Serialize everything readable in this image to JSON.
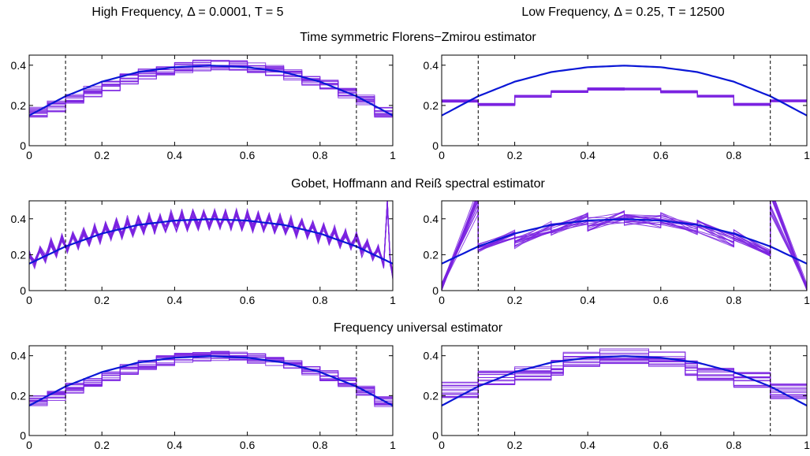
{
  "column_titles": [
    "High Frequency, Δ = 0.0001, T = 5",
    "Low Frequency, Δ = 0.25, T = 12500"
  ],
  "row_titles": [
    "Time symmetric Florens−Zmirou estimator",
    "Gobet, Hoffmann and Reiß spectral estimator",
    "Frequency universal estimator"
  ],
  "colors": {
    "true_curve": "#0a17d6",
    "estimates": "#7a22e0",
    "dashed_lines": "#000000"
  },
  "chart_data": [
    {
      "type": "line",
      "id": "fz-high",
      "row": 0,
      "col": 0,
      "xlim": [
        0,
        1
      ],
      "ylim": [
        0,
        0.45
      ],
      "xticks": [
        0,
        0.2,
        0.4,
        0.6,
        0.8,
        1
      ],
      "xtick_labels": [
        "0",
        "0.2",
        "0.4",
        "0.6",
        "0.8",
        "1"
      ],
      "yticks": [
        0,
        0.2,
        0.4
      ],
      "ytick_labels": [
        "0",
        "0.2",
        "0.4"
      ],
      "vlines": [
        0.1,
        0.9
      ],
      "true_curve": {
        "x": [
          0,
          0.1,
          0.2,
          0.3,
          0.4,
          0.5,
          0.6,
          0.7,
          0.8,
          0.9,
          1
        ],
        "y": [
          0.15,
          0.246,
          0.318,
          0.366,
          0.39,
          0.398,
          0.39,
          0.366,
          0.318,
          0.246,
          0.15
        ]
      },
      "estimates": {
        "style": "step",
        "bin_edges": [
          0,
          0.05,
          0.1,
          0.15,
          0.2,
          0.25,
          0.3,
          0.35,
          0.4,
          0.45,
          0.5,
          0.55,
          0.6,
          0.65,
          0.7,
          0.75,
          0.8,
          0.85,
          0.9,
          0.95,
          1
        ],
        "center": [
          0.165,
          0.195,
          0.235,
          0.27,
          0.3,
          0.33,
          0.355,
          0.375,
          0.39,
          0.398,
          0.398,
          0.395,
          0.388,
          0.372,
          0.352,
          0.328,
          0.3,
          0.265,
          0.225,
          0.165
        ],
        "spread": 0.028,
        "count": 14
      }
    },
    {
      "type": "line",
      "id": "fz-low",
      "row": 0,
      "col": 1,
      "xlim": [
        0,
        1
      ],
      "ylim": [
        0,
        0.45
      ],
      "xticks": [
        0,
        0.2,
        0.4,
        0.6,
        0.8,
        1
      ],
      "xtick_labels": [
        "0",
        "0.2",
        "0.4",
        "0.6",
        "0.8",
        "1"
      ],
      "yticks": [
        0,
        0.2,
        0.4
      ],
      "ytick_labels": [
        "0",
        "0.2",
        "0.4"
      ],
      "vlines": [
        0.1,
        0.9
      ],
      "true_curve": {
        "x": [
          0,
          0.1,
          0.2,
          0.3,
          0.4,
          0.5,
          0.6,
          0.7,
          0.8,
          0.9,
          1
        ],
        "y": [
          0.15,
          0.246,
          0.318,
          0.366,
          0.39,
          0.398,
          0.39,
          0.366,
          0.318,
          0.246,
          0.15
        ]
      },
      "estimates": {
        "style": "step",
        "bin_edges": [
          0,
          0.1,
          0.2,
          0.3,
          0.4,
          0.5,
          0.6,
          0.7,
          0.8,
          0.9,
          1
        ],
        "center": [
          0.222,
          0.205,
          0.245,
          0.268,
          0.282,
          0.282,
          0.268,
          0.245,
          0.205,
          0.222
        ],
        "spread": 0.006,
        "count": 14
      }
    },
    {
      "type": "line",
      "id": "ghr-high",
      "row": 1,
      "col": 0,
      "xlim": [
        0,
        1
      ],
      "ylim": [
        0,
        0.5
      ],
      "xticks": [
        0,
        0.2,
        0.4,
        0.6,
        0.8,
        1
      ],
      "xtick_labels": [
        "0",
        "0.2",
        "0.4",
        "0.6",
        "0.8",
        "1"
      ],
      "yticks": [
        0,
        0.2,
        0.4
      ],
      "ytick_labels": [
        "0",
        "0.2",
        "0.4"
      ],
      "vlines": [
        0.1,
        0.9
      ],
      "true_curve": {
        "x": [
          0,
          0.1,
          0.2,
          0.3,
          0.4,
          0.5,
          0.6,
          0.7,
          0.8,
          0.9,
          1
        ],
        "y": [
          0.15,
          0.246,
          0.318,
          0.366,
          0.39,
          0.398,
          0.39,
          0.366,
          0.318,
          0.246,
          0.15
        ]
      },
      "estimates": {
        "style": "oscillating",
        "x": [
          0,
          0.015,
          0.03,
          0.045,
          0.06,
          0.075,
          0.09,
          0.105,
          0.12,
          0.135,
          0.15,
          0.165,
          0.18,
          0.195,
          0.21,
          0.225,
          0.24,
          0.255,
          0.27,
          0.285,
          0.3,
          0.315,
          0.33,
          0.345,
          0.36,
          0.375,
          0.39,
          0.405,
          0.42,
          0.435,
          0.45,
          0.465,
          0.48,
          0.495,
          0.51,
          0.525,
          0.54,
          0.555,
          0.57,
          0.585,
          0.6,
          0.615,
          0.63,
          0.645,
          0.66,
          0.675,
          0.69,
          0.705,
          0.72,
          0.735,
          0.75,
          0.765,
          0.78,
          0.795,
          0.81,
          0.825,
          0.84,
          0.855,
          0.87,
          0.885,
          0.9,
          0.915,
          0.93,
          0.945,
          0.96,
          0.975,
          0.985,
          0.993,
          1
        ],
        "center": [
          0.17,
          0.19,
          0.2,
          0.215,
          0.23,
          0.245,
          0.255,
          0.265,
          0.275,
          0.285,
          0.295,
          0.3,
          0.31,
          0.318,
          0.325,
          0.333,
          0.34,
          0.345,
          0.352,
          0.357,
          0.362,
          0.368,
          0.372,
          0.376,
          0.38,
          0.383,
          0.386,
          0.389,
          0.391,
          0.393,
          0.395,
          0.396,
          0.397,
          0.398,
          0.398,
          0.397,
          0.396,
          0.395,
          0.393,
          0.391,
          0.389,
          0.386,
          0.383,
          0.38,
          0.376,
          0.372,
          0.368,
          0.362,
          0.357,
          0.352,
          0.345,
          0.34,
          0.333,
          0.325,
          0.318,
          0.31,
          0.3,
          0.295,
          0.285,
          0.275,
          0.265,
          0.25,
          0.235,
          0.22,
          0.2,
          0.18,
          0.45,
          0.2,
          0.05
        ],
        "spread": 0.045,
        "count": 16
      }
    },
    {
      "type": "line",
      "id": "ghr-low",
      "row": 1,
      "col": 1,
      "xlim": [
        0,
        1
      ],
      "ylim": [
        0,
        0.5
      ],
      "xticks": [
        0,
        0.2,
        0.4,
        0.6,
        0.8,
        1
      ],
      "xtick_labels": [
        "0",
        "0.2",
        "0.4",
        "0.6",
        "0.8",
        "1"
      ],
      "yticks": [
        0,
        0.2,
        0.4
      ],
      "ytick_labels": [
        "0",
        "0.2",
        "0.4"
      ],
      "vlines": [
        0.1,
        0.9
      ],
      "true_curve": {
        "x": [
          0,
          0.1,
          0.2,
          0.3,
          0.4,
          0.5,
          0.6,
          0.7,
          0.8,
          0.9,
          1
        ],
        "y": [
          0.15,
          0.246,
          0.318,
          0.366,
          0.39,
          0.398,
          0.39,
          0.366,
          0.318,
          0.246,
          0.15
        ]
      },
      "estimates": {
        "style": "piecewise",
        "segments": [
          {
            "x0": 0,
            "x1": 0.1,
            "y0": 0.02,
            "y1": 0.5,
            "s0": 0.02,
            "s1": 0.08
          },
          {
            "x0": 0.1,
            "x1": 0.2,
            "y0": 0.24,
            "y1": 0.31,
            "s0": 0.03,
            "s1": 0.03
          },
          {
            "x0": 0.2,
            "x1": 0.3,
            "y0": 0.27,
            "y1": 0.36,
            "s0": 0.04,
            "s1": 0.04
          },
          {
            "x0": 0.3,
            "x1": 0.4,
            "y0": 0.34,
            "y1": 0.4,
            "s0": 0.035,
            "s1": 0.035
          },
          {
            "x0": 0.4,
            "x1": 0.5,
            "y0": 0.37,
            "y1": 0.41,
            "s0": 0.04,
            "s1": 0.035
          },
          {
            "x0": 0.5,
            "x1": 0.6,
            "y0": 0.39,
            "y1": 0.38,
            "s0": 0.035,
            "s1": 0.04
          },
          {
            "x0": 0.6,
            "x1": 0.7,
            "y0": 0.4,
            "y1": 0.34,
            "s0": 0.035,
            "s1": 0.035
          },
          {
            "x0": 0.7,
            "x1": 0.8,
            "y0": 0.36,
            "y1": 0.27,
            "s0": 0.04,
            "s1": 0.04
          },
          {
            "x0": 0.8,
            "x1": 0.9,
            "y0": 0.31,
            "y1": 0.22,
            "s0": 0.03,
            "s1": 0.03
          },
          {
            "x0": 0.9,
            "x1": 1,
            "y0": 0.5,
            "y1": 0.02,
            "s0": 0.08,
            "s1": 0.02
          }
        ],
        "count": 16
      }
    },
    {
      "type": "line",
      "id": "fu-high",
      "row": 2,
      "col": 0,
      "xlim": [
        0,
        1
      ],
      "ylim": [
        0,
        0.45
      ],
      "xticks": [
        0,
        0.2,
        0.4,
        0.6,
        0.8,
        1
      ],
      "xtick_labels": [
        "0",
        "0.2",
        "0.4",
        "0.6",
        "0.8",
        "1"
      ],
      "yticks": [
        0,
        0.2,
        0.4
      ],
      "ytick_labels": [
        "0",
        "0.2",
        "0.4"
      ],
      "vlines": [
        0.1,
        0.9
      ],
      "true_curve": {
        "x": [
          0,
          0.1,
          0.2,
          0.3,
          0.4,
          0.5,
          0.6,
          0.7,
          0.8,
          0.9,
          1
        ],
        "y": [
          0.15,
          0.246,
          0.318,
          0.366,
          0.39,
          0.398,
          0.39,
          0.366,
          0.318,
          0.246,
          0.15
        ]
      },
      "estimates": {
        "style": "step",
        "bin_edges": [
          0,
          0.05,
          0.1,
          0.15,
          0.2,
          0.25,
          0.3,
          0.35,
          0.4,
          0.45,
          0.5,
          0.55,
          0.6,
          0.65,
          0.7,
          0.75,
          0.8,
          0.85,
          0.9,
          0.95,
          1
        ],
        "center": [
          0.175,
          0.2,
          0.238,
          0.27,
          0.3,
          0.33,
          0.355,
          0.376,
          0.39,
          0.398,
          0.398,
          0.396,
          0.388,
          0.372,
          0.352,
          0.328,
          0.3,
          0.265,
          0.225,
          0.17
        ],
        "spread": 0.026,
        "count": 14
      }
    },
    {
      "type": "line",
      "id": "fu-low",
      "row": 2,
      "col": 1,
      "xlim": [
        0,
        1
      ],
      "ylim": [
        0,
        0.45
      ],
      "xticks": [
        0,
        0.2,
        0.4,
        0.6,
        0.8,
        1
      ],
      "xtick_labels": [
        "0",
        "0.2",
        "0.4",
        "0.6",
        "0.8",
        "1"
      ],
      "yticks": [
        0,
        0.2,
        0.4
      ],
      "ytick_labels": [
        "0",
        "0.2",
        "0.4"
      ],
      "vlines": [
        0.1,
        0.9
      ],
      "true_curve": {
        "x": [
          0,
          0.1,
          0.2,
          0.3,
          0.4,
          0.5,
          0.6,
          0.7,
          0.8,
          0.9,
          1
        ],
        "y": [
          0.15,
          0.246,
          0.318,
          0.366,
          0.39,
          0.398,
          0.39,
          0.366,
          0.318,
          0.246,
          0.15
        ]
      },
      "estimates": {
        "style": "step",
        "bin_edges": [
          0,
          0.1,
          0.2,
          0.3,
          0.333,
          0.433,
          0.567,
          0.667,
          0.7,
          0.8,
          0.9,
          1
        ],
        "center": [
          0.23,
          0.285,
          0.31,
          0.34,
          0.385,
          0.4,
          0.385,
          0.34,
          0.31,
          0.28,
          0.22
        ],
        "spread": 0.04,
        "count": 16
      }
    }
  ]
}
